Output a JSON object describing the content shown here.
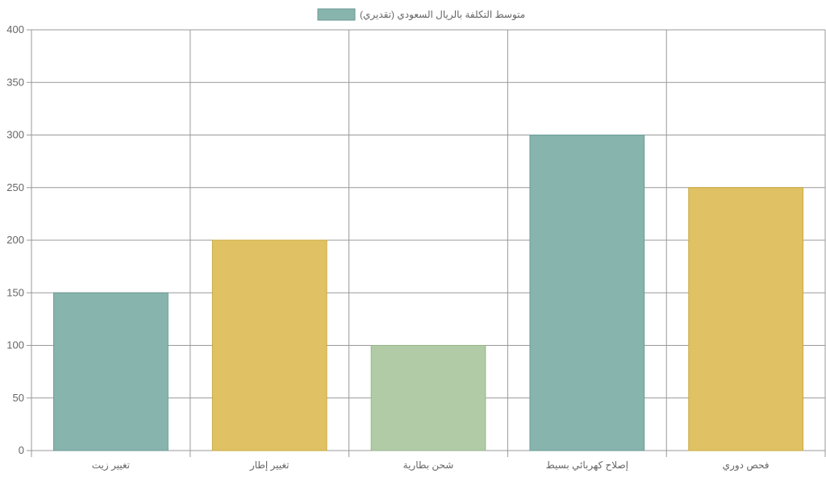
{
  "chart_data": {
    "type": "bar",
    "categories": [
      "تغيير زيت",
      "تغيير إطار",
      "شحن بطارية",
      "إصلاح كهربائي بسيط",
      "فحص دوري"
    ],
    "series": [
      {
        "name": "متوسط التكلفة بالريال السعودي (تقديري)",
        "values": [
          150,
          200,
          100,
          300,
          250
        ]
      }
    ],
    "bar_colors": [
      "#88b4ae",
      "#e0c264",
      "#b1cba7",
      "#88b4ae",
      "#e0c264"
    ],
    "bar_border_colors": [
      "#6a9a93",
      "#c9a83a",
      "#94b589",
      "#6a9a93",
      "#c9a83a"
    ],
    "legend_color": "#88b4ae",
    "legend_border_color": "#6a9a93",
    "grid_color": "#999999",
    "tick_color": "#666666",
    "ylim": [
      0,
      400
    ],
    "y_ticks": [
      0,
      50,
      100,
      150,
      200,
      250,
      300,
      350,
      400
    ],
    "grid": true,
    "legend_position": "top"
  }
}
